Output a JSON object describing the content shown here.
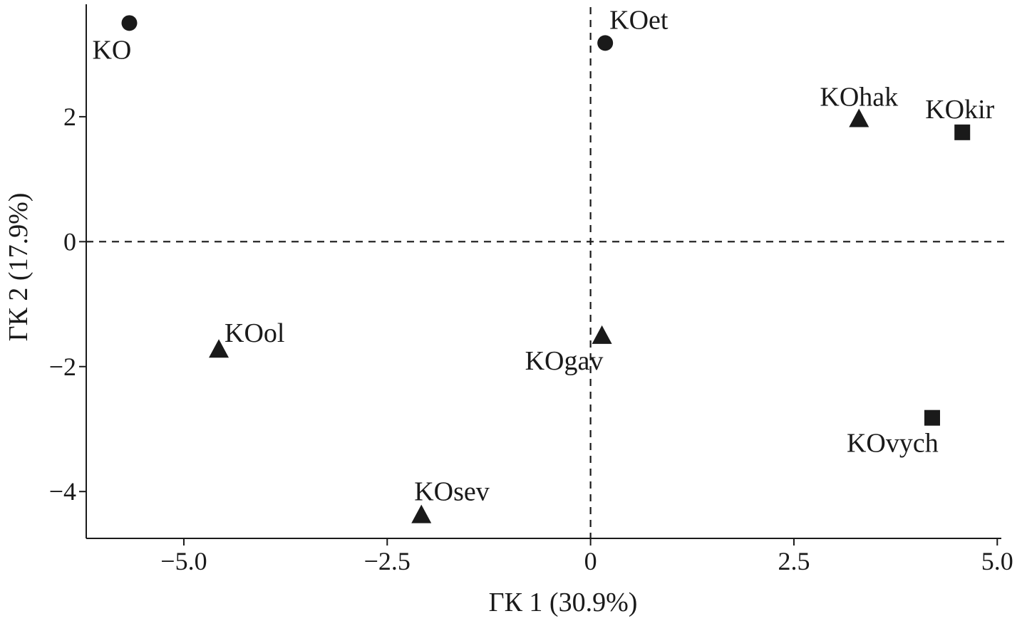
{
  "chart_data": {
    "type": "scatter",
    "xlabel": "ГК 1 (30.9%)",
    "ylabel": "ГК 2 (17.9%)",
    "xlim": [
      -6.2,
      5.05
    ],
    "ylim": [
      -4.75,
      3.8
    ],
    "xticks": [
      -5.0,
      -2.5,
      0,
      2.5,
      5.0
    ],
    "xtick_labels": [
      "−5.0",
      "−2.5",
      "0",
      "2.5",
      "5.0"
    ],
    "yticks": [
      2,
      0,
      -2,
      -4
    ],
    "ytick_labels": [
      "2",
      "0",
      "−2",
      "−4"
    ],
    "reference_lines": {
      "x": 0,
      "y": 0,
      "style": "dashed"
    },
    "grid": false,
    "marker_color": "#1a1a1a",
    "points": [
      {
        "label": "KO",
        "x": -5.67,
        "y": 3.5,
        "marker": "circle",
        "label_pos": "below-left"
      },
      {
        "label": "KOet",
        "x": 0.18,
        "y": 3.18,
        "marker": "circle",
        "label_pos": "above-right"
      },
      {
        "label": "KOhak",
        "x": 3.3,
        "y": 1.97,
        "marker": "triangle",
        "label_pos": "above"
      },
      {
        "label": "KOkir",
        "x": 4.57,
        "y": 1.75,
        "marker": "square",
        "label_pos": "above-left"
      },
      {
        "label": "KOol",
        "x": -4.57,
        "y": -1.72,
        "marker": "triangle",
        "label_pos": "above-right"
      },
      {
        "label": "KOgav",
        "x": 0.14,
        "y": -1.5,
        "marker": "triangle",
        "label_pos": "below-left"
      },
      {
        "label": "KOvych",
        "x": 4.2,
        "y": -2.82,
        "marker": "square",
        "label_pos": "below-left"
      },
      {
        "label": "KOsev",
        "x": -2.08,
        "y": -4.37,
        "marker": "triangle",
        "label_pos": "above-right"
      }
    ]
  }
}
